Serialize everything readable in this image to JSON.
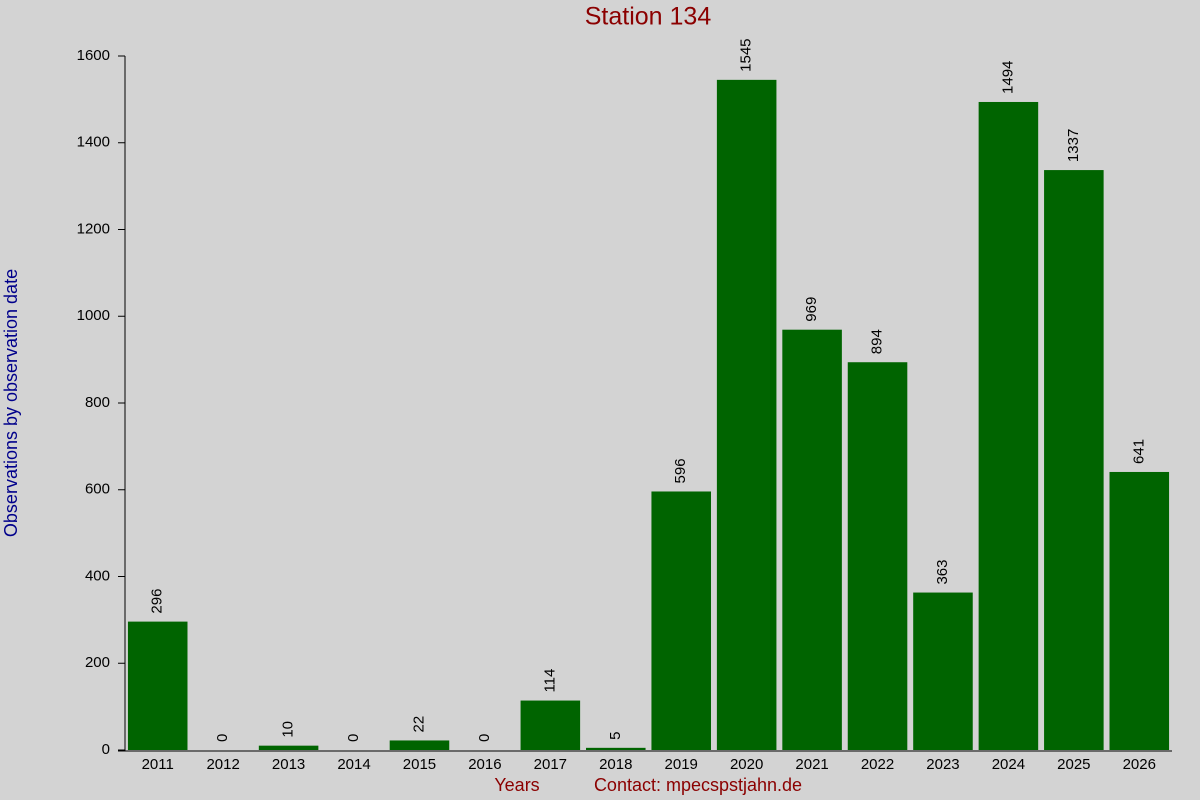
{
  "chart_data": {
    "type": "bar",
    "title": "Station 134",
    "x_label": "Years",
    "contact": "Contact: mpecspstjahn.de",
    "y_label": "Observations by observation date",
    "categories": [
      "2011",
      "2012",
      "2013",
      "2014",
      "2015",
      "2016",
      "2017",
      "2018",
      "2019",
      "2020",
      "2021",
      "2022",
      "2023",
      "2024",
      "2025",
      "2026"
    ],
    "values": [
      296,
      0,
      10,
      0,
      22,
      0,
      114,
      5,
      596,
      1545,
      969,
      894,
      363,
      1494,
      1337,
      641
    ],
    "color": "#006400",
    "ylim": [
      0,
      1600
    ],
    "yticks": [
      0,
      200,
      400,
      600,
      800,
      1000,
      1200,
      1400,
      1600
    ],
    "grid": false
  }
}
